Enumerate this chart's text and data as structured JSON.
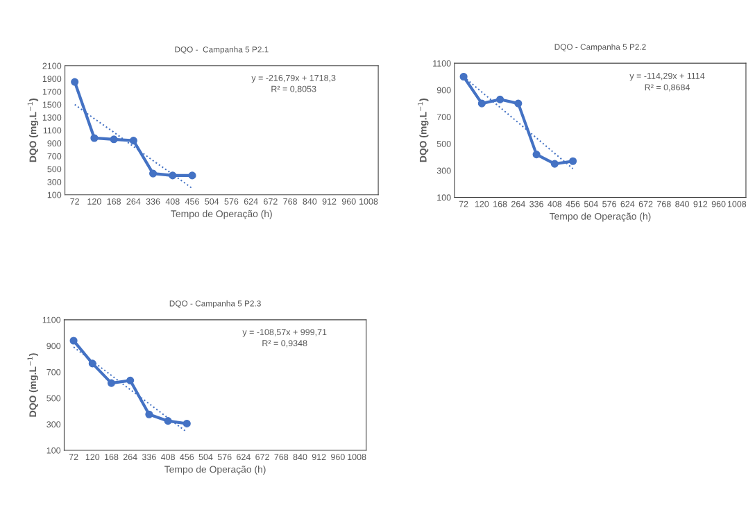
{
  "chart_data": [
    {
      "type": "line",
      "title": "DQO -  Campanha 5 P2.1",
      "xlabel": "Tempo de Operação (h)",
      "ylabel": "DQO (mg.L$^{−1}$)",
      "categories": [
        "72",
        "120",
        "168",
        "264",
        "336",
        "408",
        "456",
        "504",
        "576",
        "624",
        "672",
        "768",
        "840",
        "912",
        "960",
        "1008"
      ],
      "series": [
        {
          "color": "#4472c4",
          "marker": "circle",
          "line_style": "solid",
          "values": [
            1850,
            980,
            960,
            940,
            430,
            400,
            400,
            null,
            null,
            null,
            null,
            null,
            null,
            null,
            null,
            null
          ]
        },
        {
          "color": "#4472c4",
          "marker": "none",
          "line_style": "dotted",
          "values": [
            1500,
            1280,
            1070,
            850,
            630,
            420,
            200,
            null,
            null,
            null,
            null,
            null,
            null,
            null,
            null,
            null
          ]
        }
      ],
      "ylim": [
        100,
        2100
      ],
      "yticks": [
        100,
        300,
        500,
        700,
        900,
        1100,
        1300,
        1500,
        1700,
        1900,
        2100
      ],
      "grid": false,
      "legend": false,
      "annotations": [
        "y = -216,79x + 1718,3",
        "R² = 0,8053"
      ]
    },
    {
      "type": "line",
      "title": "DQO - Campanha 5 P2.2",
      "xlabel": "Tempo de Operação (h)",
      "ylabel": "DQO (mg.L$^{−1}$)",
      "categories": [
        "72",
        "120",
        "168",
        "264",
        "336",
        "408",
        "456",
        "504",
        "576",
        "624",
        "672",
        "768",
        "840",
        "912",
        "960",
        "1008"
      ],
      "series": [
        {
          "color": "#4472c4",
          "marker": "circle",
          "line_style": "solid",
          "values": [
            1000,
            800,
            830,
            800,
            420,
            350,
            370,
            null,
            null,
            null,
            null,
            null,
            null,
            null,
            null,
            null
          ]
        },
        {
          "color": "#4472c4",
          "marker": "none",
          "line_style": "dotted",
          "values": [
            1000,
            885,
            771,
            657,
            543,
            428,
            314,
            null,
            null,
            null,
            null,
            null,
            null,
            null,
            null,
            null
          ]
        }
      ],
      "ylim": [
        100,
        1100
      ],
      "yticks": [
        100,
        300,
        500,
        700,
        900,
        1100
      ],
      "grid": false,
      "legend": false,
      "annotations": [
        "y = -114,29x + 1114",
        "R² = 0,8684"
      ]
    },
    {
      "type": "line",
      "title": "DQO - Campanha 5 P2.3",
      "xlabel": "Tempo de Operação (h)",
      "ylabel": "DQO (mg.L$^{−1}$)",
      "categories": [
        "72",
        "120",
        "168",
        "264",
        "336",
        "408",
        "456",
        "504",
        "576",
        "624",
        "672",
        "768",
        "840",
        "912",
        "960",
        "1008"
      ],
      "series": [
        {
          "color": "#4472c4",
          "marker": "circle",
          "line_style": "solid",
          "values": [
            940,
            765,
            615,
            635,
            375,
            325,
            305,
            null,
            null,
            null,
            null,
            null,
            null,
            null,
            null,
            null
          ]
        },
        {
          "color": "#4472c4",
          "marker": "none",
          "line_style": "dotted",
          "values": [
            891,
            783,
            674,
            565,
            457,
            348,
            240,
            null,
            null,
            null,
            null,
            null,
            null,
            null,
            null,
            null
          ]
        }
      ],
      "ylim": [
        100,
        1100
      ],
      "yticks": [
        100,
        300,
        500,
        700,
        900,
        1100
      ],
      "grid": false,
      "legend": false,
      "annotations": [
        "y = -108,57x + 999,71",
        "R² = 0,9348"
      ]
    }
  ]
}
